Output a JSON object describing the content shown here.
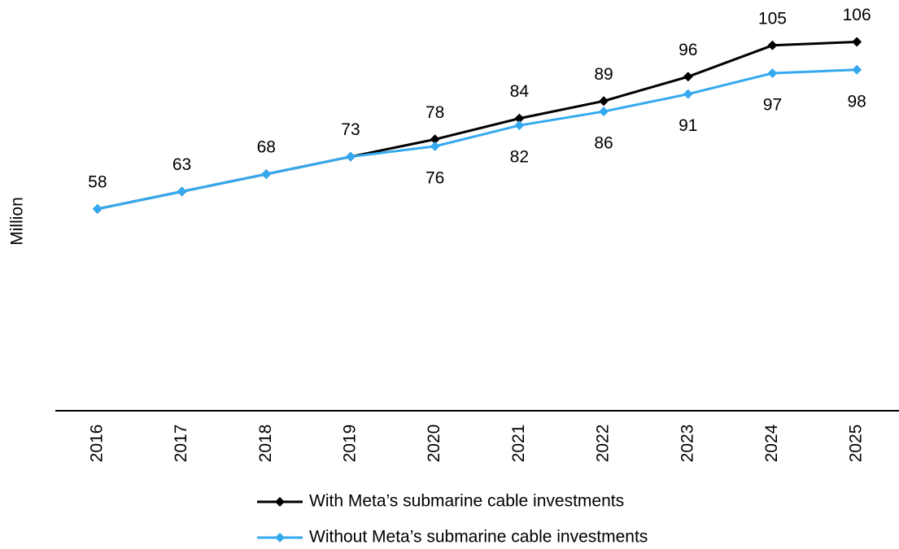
{
  "chart_data": {
    "type": "line",
    "y_label": "Million",
    "categories": [
      "2016",
      "2017",
      "2018",
      "2019",
      "2020",
      "2021",
      "2022",
      "2023",
      "2024",
      "2025"
    ],
    "series": [
      {
        "name": "With Meta’s submarine cable investments",
        "color": "#000000",
        "values": [
          58,
          63,
          68,
          73,
          78,
          84,
          89,
          96,
          105,
          106
        ]
      },
      {
        "name": "Without Meta’s submarine cable investments",
        "color": "#35a9f0",
        "values": [
          58,
          63,
          68,
          73,
          76,
          82,
          86,
          91,
          97,
          98
        ]
      }
    ],
    "ylim": [
      0,
      115
    ]
  }
}
